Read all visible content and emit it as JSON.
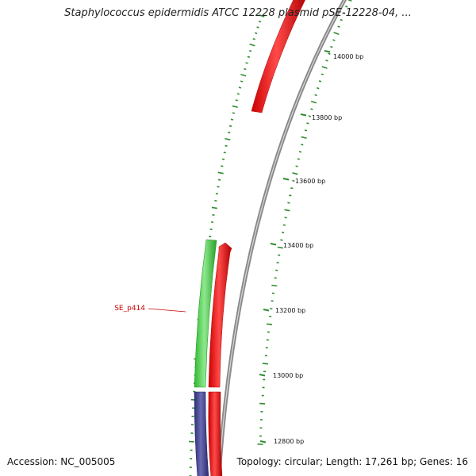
{
  "title": "Staphylococcus epidermidis ATCC 12228 plasmid pSE-12228-04, ...",
  "accession": "Accession: NC_005005",
  "summary": "Topology: circular; Length: 17,261 bp; Genes: 16",
  "scale": {
    "ticks": [
      {
        "bp": 14000,
        "label": "14000 bp"
      },
      {
        "bp": 13800,
        "label": "13800 bp"
      },
      {
        "bp": 13600,
        "label": "13600 bp"
      },
      {
        "bp": 13400,
        "label": "13400 bp"
      },
      {
        "bp": 13200,
        "label": "13200 bp"
      },
      {
        "bp": 13000,
        "label": "13000 bp"
      },
      {
        "bp": 12800,
        "label": "12800 bp"
      }
    ]
  },
  "callouts": [
    {
      "label": "SE_p414"
    }
  ],
  "colors": {
    "backbone": "#8a8a8a",
    "tick": "#2e8b2e",
    "gene_red": "#ff0000",
    "gene_green": "#33cc33",
    "gene_blue": "#3d3d8f",
    "label_red": "#cc0000"
  }
}
